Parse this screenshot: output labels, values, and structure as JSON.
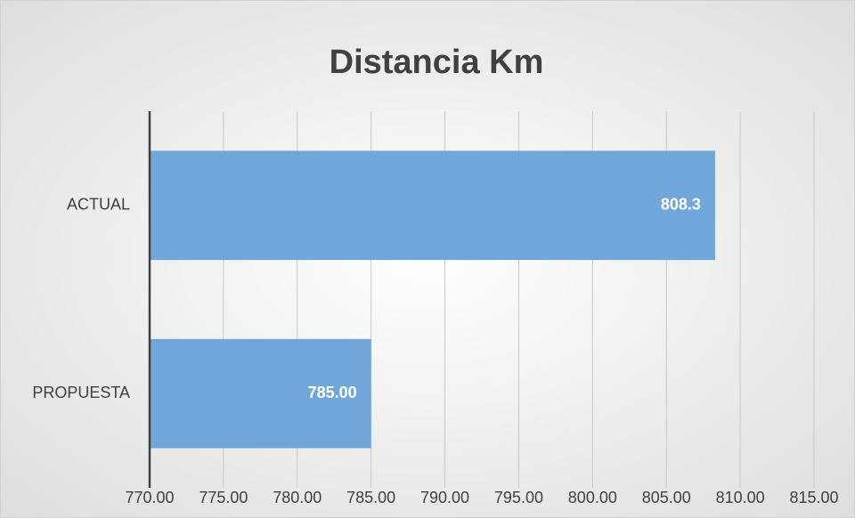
{
  "chart_data": {
    "type": "bar",
    "orientation": "horizontal",
    "title": "Distancia Km",
    "categories": [
      "ACTUAL",
      "PROPUESTA"
    ],
    "values": [
      808.3,
      785
    ],
    "value_labels": [
      "808.3",
      "785.00"
    ],
    "color": "#70a6da",
    "xlim": [
      770,
      815
    ],
    "xticks": [
      {
        "value": 770,
        "label": "770.00"
      },
      {
        "value": 775,
        "label": "775.00"
      },
      {
        "value": 780,
        "label": "780.00"
      },
      {
        "value": 785,
        "label": "785.00"
      },
      {
        "value": 790,
        "label": "790.00"
      },
      {
        "value": 795,
        "label": "795.00"
      },
      {
        "value": 800,
        "label": "800.00"
      },
      {
        "value": 805,
        "label": "805.00"
      },
      {
        "value": 810,
        "label": "810.00"
      },
      {
        "value": 815,
        "label": "815.00"
      }
    ],
    "grid": true
  }
}
